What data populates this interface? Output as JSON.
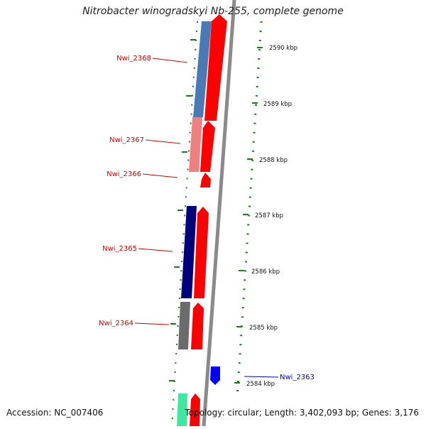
{
  "title": "Nitrobacter winogradskyi Nb-255, complete genome",
  "footer": {
    "accession": "Accession: NC_007406",
    "summary": "Topology: circular; Length: 3,402,093 bp; Genes: 3,176"
  },
  "colors": {
    "background": "#ffffff",
    "backbone": "#8a8a8a",
    "tick": "#1e7a1e",
    "forward_label": "#d40000",
    "reverse_label": "#0000cc"
  },
  "ticks": [
    {
      "label": "2590 kbp",
      "kbp": 2590
    },
    {
      "label": "2589 kbp",
      "kbp": 2589
    },
    {
      "label": "2588 kbp",
      "kbp": 2588
    },
    {
      "label": "2587 kbp",
      "kbp": 2587
    },
    {
      "label": "2586 kbp",
      "kbp": 2586
    },
    {
      "label": "2585 kbp",
      "kbp": 2585
    },
    {
      "label": "2584 kbp",
      "kbp": 2584
    }
  ],
  "genes": [
    {
      "name": "Nwi_2368",
      "strand": "forward"
    },
    {
      "name": "Nwi_2367",
      "strand": "forward"
    },
    {
      "name": "Nwi_2366",
      "strand": "forward"
    },
    {
      "name": "Nwi_2365",
      "strand": "forward"
    },
    {
      "name": "Nwi_2364",
      "strand": "forward"
    },
    {
      "name": "Nwi_2363",
      "strand": "reverse"
    }
  ]
}
